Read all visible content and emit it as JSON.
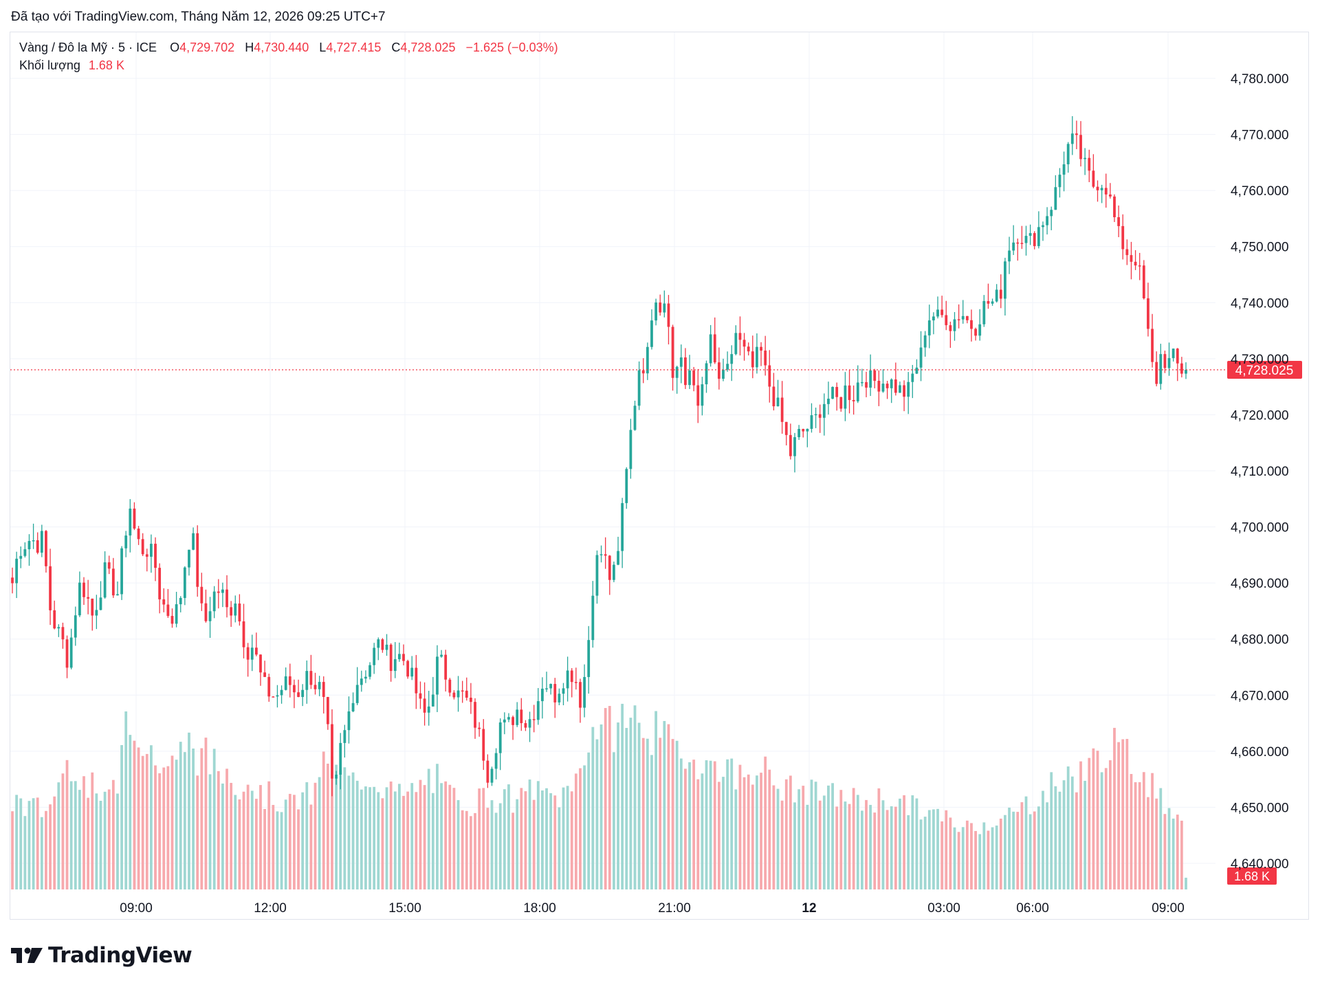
{
  "caption": "Đã tạo với TradingView.com, Tháng Năm 12, 2026 09:25 UTC+7",
  "legend": {
    "symbol": "Vàng / Đô la Mỹ · 5 · ICE",
    "open_label": "O",
    "open": "4,729.702",
    "high_label": "H",
    "high": "4,730.440",
    "low_label": "L",
    "low": "4,727.415",
    "close_label": "C",
    "close": "4,728.025",
    "change": "−1.625 (−0.03%)",
    "volume_label": "Khối lượng",
    "volume": "1.68 K"
  },
  "brand": "TradingView",
  "colors": {
    "up": "#26a69a",
    "down": "#f23645",
    "up_vol": "#9fd7d2",
    "down_vol": "#f7a9ad",
    "grid": "#f0f3fa"
  },
  "chart_data": {
    "type": "candlestick",
    "price_axis": {
      "ticks": [
        "4,640.000",
        "4,650.000",
        "4,660.000",
        "4,670.000",
        "4,680.000",
        "4,690.000",
        "4,700.000",
        "4,710.000",
        "4,720.000",
        "4,730.000",
        "4,740.000",
        "4,750.000",
        "4,760.000",
        "4,770.000",
        "4,780.000"
      ],
      "range": [
        4635,
        4787
      ]
    },
    "time_axis": {
      "ticks": [
        "09:00",
        "12:00",
        "15:00",
        "18:00",
        "21:00",
        "12",
        "03:00",
        "06:00",
        "09:00"
      ]
    },
    "last_price": "4,728.025",
    "last_price_value": 4728.025,
    "last_volume": "1.68 K",
    "close_path": [
      4690,
      4696,
      4697,
      4698,
      4697,
      4698,
      4686,
      4682,
      4680,
      4676,
      4684,
      4690,
      4688,
      4684,
      4688,
      4692,
      4690,
      4688,
      4697,
      4704,
      4698,
      4696,
      4696,
      4694,
      4687,
      4685,
      4684,
      4686,
      4694,
      4700,
      4690,
      4682,
      4686,
      4689,
      4688,
      4684,
      4688,
      4682,
      4678,
      4679,
      4674,
      4671,
      4670,
      4670,
      4672,
      4672,
      4670,
      4672,
      4674,
      4672,
      4671,
      4664,
      4650,
      4660,
      4664,
      4670,
      4673,
      4674,
      4676,
      4679,
      4679,
      4676,
      4677,
      4677,
      4675,
      4672,
      4668,
      4666,
      4671,
      4677,
      4674,
      4672,
      4670,
      4670,
      4668,
      4665,
      4661,
      4656,
      4660,
      4665,
      4664,
      4666,
      4668,
      4665,
      4666,
      4669,
      4673,
      4671,
      4670,
      4673,
      4674,
      4674,
      4669,
      4676,
      4690,
      4696,
      4694,
      4690,
      4694,
      4707,
      4717,
      4725,
      4728,
      4735,
      4741,
      4740,
      4739,
      4726,
      4730,
      4725,
      4730,
      4720,
      4727,
      4733,
      4727,
      4726,
      4728,
      4735,
      4732,
      4730,
      4728,
      4732,
      4727,
      4724,
      4721,
      4717,
      4713,
      4716,
      4717,
      4718,
      4719,
      4722,
      4723,
      4723,
      4722,
      4725,
      4723,
      4726,
      4727,
      4726,
      4726,
      4726,
      4726,
      4725,
      4724,
      4724,
      4728,
      4730,
      4737,
      4738,
      4737,
      4738,
      4736,
      4738,
      4738,
      4736,
      4736,
      4739,
      4740,
      4740,
      4742,
      4750,
      4751,
      4753,
      4751,
      4751,
      4753,
      4755,
      4757,
      4760,
      4765,
      4768,
      4769,
      4766,
      4763,
      4761,
      4762,
      4761,
      4757,
      4752,
      4750,
      4748,
      4748,
      4742,
      4733,
      4725,
      4731,
      4729,
      4730,
      4728,
      4728
    ],
    "volumes": [
      0.45,
      0.45,
      0.42,
      0.42,
      0.42,
      0.4,
      0.42,
      0.48,
      0.58,
      0.63,
      0.65,
      0.58,
      0.55,
      0.52,
      0.48,
      0.48,
      0.45,
      0.53,
      0.85,
      0.9,
      0.85,
      0.82,
      0.7,
      0.7,
      0.64,
      0.63,
      0.63,
      0.62,
      0.7,
      0.75,
      0.72,
      0.68,
      0.68,
      0.64,
      0.62,
      0.6,
      0.62,
      0.55,
      0.54,
      0.58,
      0.52,
      0.48,
      0.48,
      0.47,
      0.45,
      0.45,
      0.43,
      0.46,
      0.46,
      0.48,
      0.5,
      0.62,
      0.68,
      0.63,
      0.6,
      0.58,
      0.55,
      0.56,
      0.57,
      0.58,
      0.55,
      0.53,
      0.52,
      0.5,
      0.48,
      0.48,
      0.5,
      0.52,
      0.55,
      0.58,
      0.56,
      0.5,
      0.49,
      0.47,
      0.46,
      0.45,
      0.44,
      0.46,
      0.48,
      0.47,
      0.46,
      0.46,
      0.47,
      0.45,
      0.46,
      0.5,
      0.52,
      0.49,
      0.48,
      0.48,
      0.47,
      0.49,
      0.5,
      0.58,
      0.66,
      0.72,
      0.8,
      0.85,
      0.82,
      0.82,
      0.86,
      0.88,
      0.88,
      0.87,
      0.84,
      0.83,
      0.8,
      0.78,
      0.75,
      0.73,
      0.72,
      0.7,
      0.68,
      0.66,
      0.64,
      0.63,
      0.63,
      0.64,
      0.62,
      0.6,
      0.58,
      0.58,
      0.6,
      0.68,
      0.6,
      0.56,
      0.53,
      0.52,
      0.52,
      0.51,
      0.51,
      0.5,
      0.49,
      0.49,
      0.49,
      0.48,
      0.48,
      0.47,
      0.47,
      0.46,
      0.45,
      0.45,
      0.45,
      0.46,
      0.46,
      0.46,
      0.45,
      0.44,
      0.43,
      0.42,
      0.4,
      0.4,
      0.39,
      0.38,
      0.36,
      0.34,
      0.33,
      0.32,
      0.32,
      0.33,
      0.33,
      0.34,
      0.35,
      0.36,
      0.37,
      0.38,
      0.4,
      0.42,
      0.44,
      0.46,
      0.48,
      0.5,
      0.53,
      0.55,
      0.56,
      0.58,
      0.58,
      0.6,
      0.62,
      0.66,
      0.7,
      0.72,
      0.72,
      0.7,
      0.68,
      0.65,
      0.62,
      0.58,
      0.55,
      0.5,
      0.46,
      0.43,
      0.42,
      0.38,
      0.06
    ]
  }
}
